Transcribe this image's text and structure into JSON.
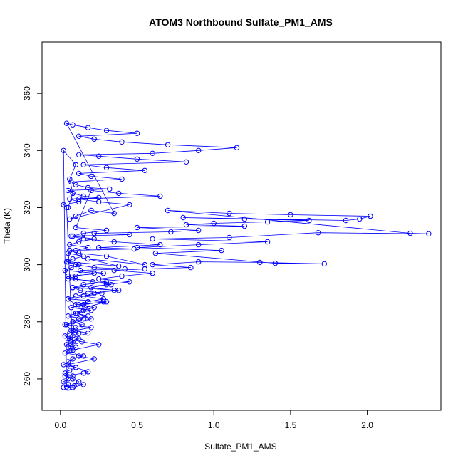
{
  "chart_data": {
    "type": "scatter",
    "title": "ATOM3 Northbound Sulfate_PM1_AMS",
    "xlabel": "Sulfate_PM1_AMS",
    "ylabel": "Theta (K)",
    "xlim": [
      -0.12,
      2.48
    ],
    "ylim": [
      249,
      378
    ],
    "x_ticks": [
      0.0,
      0.5,
      1.0,
      1.5,
      2.0
    ],
    "x_tick_labels": [
      "0.0",
      "0.5",
      "1.0",
      "1.5",
      "2.0"
    ],
    "y_ticks": [
      260,
      280,
      300,
      320,
      340,
      360
    ],
    "y_tick_labels": [
      "260",
      "280",
      "300",
      "320",
      "340",
      "360"
    ],
    "marker": "open-circle",
    "connected_by_lines": true,
    "grid": false,
    "legend": "none",
    "series": [
      {
        "color": "#0000ff",
        "x": [
          0.02,
          0.05,
          0.09,
          0.12,
          0.08,
          0.03,
          0.15,
          0.18,
          0.1,
          0.05,
          0.22,
          0.12,
          0.07,
          0.25,
          0.14,
          0.05,
          0.18,
          0.08,
          0.03,
          0.2,
          0.11,
          0.16,
          0.3,
          0.1,
          0.05,
          0.27,
          0.13,
          0.08,
          0.33,
          0.21,
          0.1,
          0.05,
          0.28,
          0.13,
          0.42,
          0.22,
          0.1,
          0.05,
          0.38,
          0.18,
          0.55,
          0.3,
          0.12,
          0.06,
          0.48,
          0.25,
          0.65,
          0.35,
          0.15,
          0.07,
          0.45,
          0.22,
          0.72,
          0.9,
          0.5,
          1.2,
          0.82,
          1.0,
          1.35,
          1.62,
          1.2,
          0.8,
          1.86,
          1.95,
          2.02,
          1.5,
          1.1,
          0.7,
          2.28,
          2.4,
          1.68,
          1.1,
          0.6,
          1.35,
          0.9,
          0.5,
          1.05,
          0.62,
          1.4,
          1.72,
          1.3,
          0.9,
          0.6,
          0.85,
          0.55,
          0.35,
          0.6,
          0.4,
          0.25,
          0.45,
          0.3,
          0.2,
          0.35,
          0.22,
          0.15,
          0.28,
          0.18,
          0.12,
          0.22,
          0.15,
          0.1,
          0.18,
          0.12,
          0.08,
          0.14,
          0.1,
          0.07,
          0.12,
          0.08,
          0.06,
          0.1,
          0.07,
          0.05,
          0.08,
          0.04,
          0.02,
          0.12,
          0.06,
          0.25,
          0.15,
          0.08,
          0.05,
          0.32,
          0.18,
          0.1,
          0.07,
          0.4,
          0.2,
          0.12,
          0.55,
          0.3,
          0.15,
          0.82,
          0.5,
          0.25,
          0.12,
          0.6,
          0.9,
          1.15,
          0.7,
          0.4,
          0.22,
          0.12,
          0.5,
          0.3,
          0.18,
          0.08,
          0.04,
          0.35,
          0.2,
          0.1,
          0.06,
          0.45,
          0.25,
          0.12,
          0.65,
          0.38,
          0.2,
          0.1,
          0.3,
          0.15,
          0.08,
          0.22,
          0.12,
          0.06,
          0.18,
          0.1,
          0.05,
          0.15,
          0.08,
          0.04,
          0.12,
          0.07,
          0.03,
          0.22,
          0.1,
          0.05,
          0.3,
          0.15,
          0.08,
          0.38,
          0.18,
          0.1,
          0.05,
          0.28,
          0.15,
          0.07,
          0.2,
          0.1,
          0.05,
          0.15,
          0.08,
          0.04,
          0.2,
          0.1,
          0.06,
          0.03,
          0.12,
          0.07,
          0.04,
          0.1,
          0.06,
          0.03,
          0.15,
          0.08,
          0.05,
          0.02,
          0.1,
          0.06,
          0.03,
          0.08,
          0.05,
          0.02,
          0.15,
          0.08,
          0.05,
          0.04,
          0.02,
          0.1,
          0.06,
          0.08,
          0.05
        ],
        "y": [
          257,
          258,
          257.5,
          259,
          260,
          261,
          262,
          262.5,
          264,
          265,
          267,
          268,
          270,
          272,
          273,
          274,
          276,
          277,
          279,
          281,
          283,
          285,
          287,
          286,
          288,
          290,
          291,
          292,
          293,
          294,
          295,
          296,
          297,
          298,
          298.5,
          299,
          300,
          301,
          299.5,
          302,
          300,
          303,
          304,
          305,
          305.5,
          306,
          307,
          308,
          309,
          310,
          310.5,
          311,
          311.5,
          312,
          313,
          313.5,
          314,
          314.5,
          315,
          315.5,
          316,
          316.5,
          315.5,
          316,
          317,
          317.5,
          318,
          319,
          311,
          310.8,
          311.2,
          309.5,
          309,
          308,
          307,
          306,
          305,
          304,
          300.5,
          300.3,
          300.8,
          301,
          300,
          299,
          298.5,
          298,
          297,
          296,
          295,
          294,
          293,
          292,
          291,
          290,
          289,
          288,
          287,
          286,
          285,
          284,
          283,
          282,
          281,
          280,
          279,
          278,
          277,
          276,
          275,
          274,
          273,
          272,
          271,
          270,
          320,
          321,
          322,
          323,
          323.5,
          324,
          325,
          326,
          326.5,
          327,
          328,
          329,
          330,
          331,
          332,
          333,
          334,
          335,
          336,
          337,
          338,
          338.5,
          339,
          340,
          341,
          342,
          343,
          344,
          345,
          346,
          347,
          348,
          349,
          349.5,
          318,
          319,
          317,
          316,
          321,
          322,
          323,
          324,
          325,
          326,
          313,
          312,
          311,
          310,
          309,
          308,
          307,
          306,
          305,
          304,
          303,
          302,
          301,
          300,
          299,
          298,
          297,
          296,
          295,
          294,
          293,
          292,
          291,
          290,
          289,
          288,
          287,
          286,
          285,
          284,
          283,
          282,
          281,
          280,
          279,
          278,
          277,
          276,
          275,
          274,
          273,
          272,
          271,
          270,
          269,
          268,
          267,
          266,
          265,
          264,
          263,
          262,
          261,
          260,
          259,
          258,
          257,
          256.8,
          257.2,
          340,
          335,
          330,
          325,
          320
        ]
      }
    ]
  }
}
